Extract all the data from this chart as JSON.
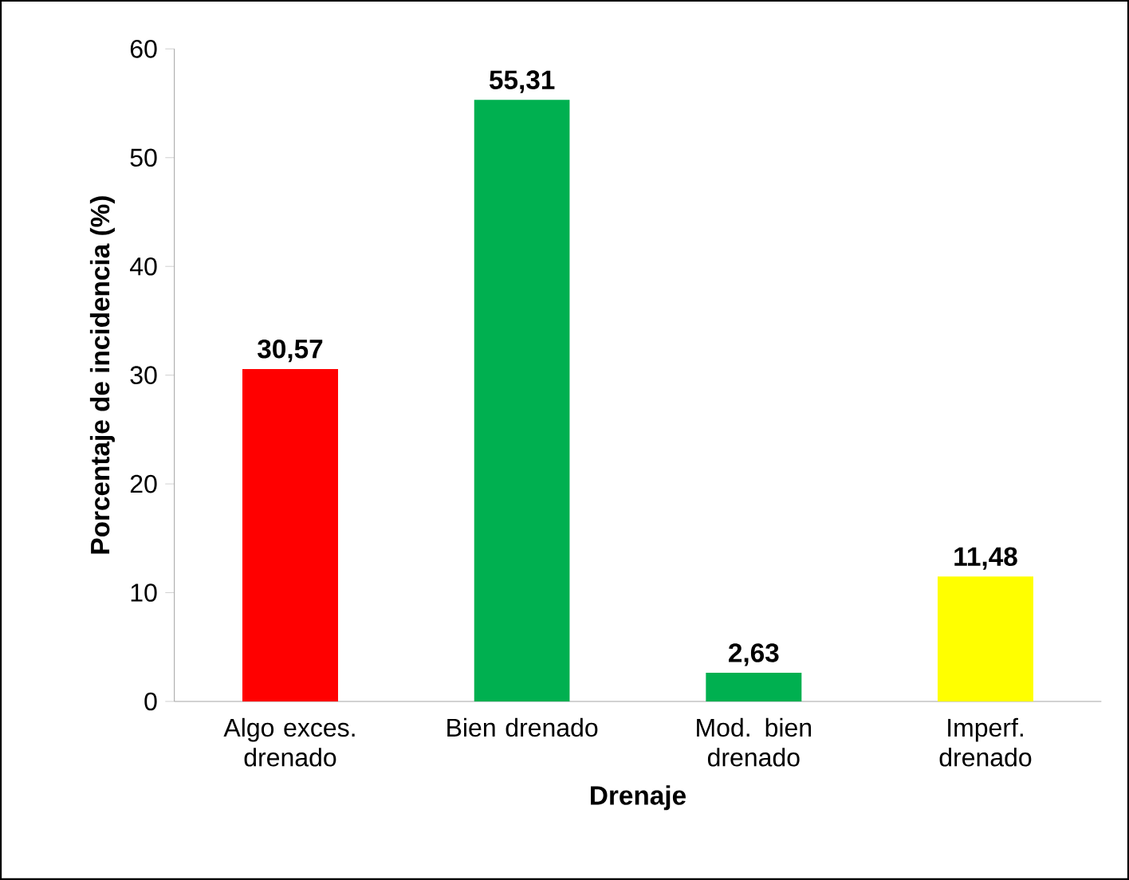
{
  "chart_data": {
    "type": "bar",
    "xlabel": "Drenaje",
    "ylabel": "Porcentaje de incidencia (%)",
    "categories": [
      "Algo exces. drenado",
      "Bien drenado",
      "Mod. bien drenado",
      "Imperf. drenado"
    ],
    "values": [
      30.57,
      55.31,
      2.63,
      11.48
    ],
    "value_labels": [
      "30,57",
      "55,31",
      "2,63",
      "11,48"
    ],
    "colors": [
      "#ff0000",
      "#00b050",
      "#00b050",
      "#ffff00"
    ],
    "ylim": [
      0,
      60
    ],
    "yticks": [
      0,
      10,
      20,
      30,
      40,
      50,
      60
    ]
  }
}
